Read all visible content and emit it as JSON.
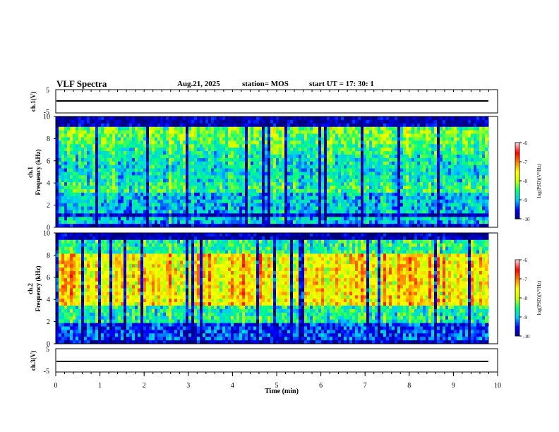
{
  "header": {
    "title": "VLF Spectra",
    "date": "Aug.21, 2025",
    "station": "station= MOS",
    "start": "start  UT =   17: 30: 1"
  },
  "chart_data": [
    {
      "type": "line",
      "ylabel": "ch.1(V)",
      "ylim": [
        -5,
        5
      ],
      "yticks": [
        5,
        -5
      ],
      "xlim": [
        0,
        10
      ],
      "description_values": {
        "baseline": 0
      }
    },
    {
      "type": "heatmap",
      "ylabel": "ch.1 Frequency (kHz)",
      "ylim": [
        0,
        10
      ],
      "yticks": [
        0,
        2,
        4,
        6,
        8,
        10
      ],
      "xlim": [
        0,
        10
      ],
      "colorbar": {
        "label": "log(PSD)(V²/Hz)",
        "range": [
          -10,
          -6
        ],
        "ticks": [
          -6,
          -7,
          -8,
          -9,
          -10
        ]
      }
    },
    {
      "type": "heatmap",
      "ylabel": "ch.2 Frequency (kHz)",
      "ylim": [
        0,
        10
      ],
      "yticks": [
        0,
        2,
        4,
        6,
        8,
        10
      ],
      "xlim": [
        0,
        10
      ],
      "colorbar": {
        "label": "log(PSD)(V²/Hz)",
        "range": [
          -10,
          -6
        ],
        "ticks": [
          -6,
          -7,
          -8,
          -9,
          -10
        ]
      }
    },
    {
      "type": "line",
      "ylabel": "ch.3(V)",
      "ylim": [
        -5,
        5
      ],
      "yticks": [
        5,
        -5
      ],
      "xlim": [
        0,
        10
      ],
      "xlabel": "Time (min)",
      "xticks": [
        0,
        1,
        2,
        3,
        4,
        5,
        6,
        7,
        8,
        9,
        10
      ]
    }
  ],
  "colors": {
    "scale": [
      "#000080",
      "#0000ff",
      "#00c8ff",
      "#00ff80",
      "#c8ff00",
      "#ffff00",
      "#ff8000",
      "#ff0000",
      "#ffd0d0"
    ]
  }
}
